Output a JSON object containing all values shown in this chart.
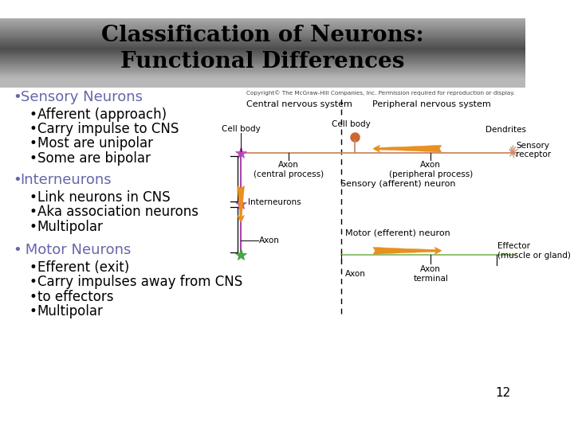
{
  "title_line1": "Classification of Neurons:",
  "title_line2": "Functional Differences",
  "bg_color": "#ffffff",
  "bullet_color": "#6666aa",
  "text_color": "#000000",
  "copyright_text": "Copyright© The McGraw-Hill Companies, Inc. Permission required for reproduction or display.",
  "page_number": "12",
  "diagram": {
    "cns_label": "Central nervous system",
    "pns_label": "Peripheral nervous system",
    "sensory_neuron_label": "Sensory (afferent) neuron",
    "motor_neuron_label": "Motor (efferent) neuron",
    "cell_body_label1": "Cell body",
    "cell_body_label2": "Cell body",
    "dendrites_label": "Dendrites",
    "sensory_receptor_label": "Sensory\nreceptor",
    "axon_central_label": "Axon\n(central process)",
    "axon_peripheral_label": "Axon\n(peripheral process)",
    "axon_label1": "Axon",
    "axon_label2": "Axon",
    "axon_terminal_label": "Axon\nterminal",
    "effector_label": "Effector\n(muscle or gland)",
    "interneurons_label": "Interneurons"
  }
}
